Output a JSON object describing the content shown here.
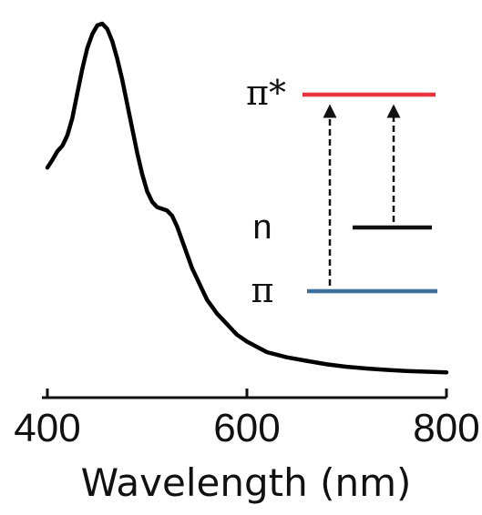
{
  "chart_data": {
    "type": "line",
    "title": "",
    "xlabel": "Wavelength (nm)",
    "ylabel": "",
    "xlim": [
      400,
      800
    ],
    "ylim": [
      0,
      1.0
    ],
    "xticks": [
      400,
      600,
      800
    ],
    "grid": false,
    "series": [
      {
        "color": "#000000",
        "x": [
          400,
          405,
          410,
          415,
          420,
          425,
          430,
          435,
          440,
          445,
          450,
          455,
          460,
          465,
          470,
          475,
          480,
          485,
          490,
          495,
          500,
          505,
          510,
          515,
          520,
          525,
          530,
          535,
          540,
          545,
          550,
          555,
          560,
          570,
          580,
          590,
          600,
          610,
          620,
          640,
          660,
          680,
          700,
          720,
          740,
          760,
          780,
          800
        ],
        "y": [
          0.588,
          0.61,
          0.635,
          0.65,
          0.68,
          0.73,
          0.8,
          0.87,
          0.93,
          0.97,
          0.995,
          1.0,
          0.985,
          0.95,
          0.9,
          0.84,
          0.77,
          0.7,
          0.63,
          0.57,
          0.52,
          0.49,
          0.475,
          0.47,
          0.465,
          0.45,
          0.42,
          0.38,
          0.34,
          0.3,
          0.27,
          0.24,
          0.21,
          0.17,
          0.14,
          0.11,
          0.09,
          0.075,
          0.06,
          0.045,
          0.035,
          0.025,
          0.018,
          0.013,
          0.009,
          0.006,
          0.004,
          0.002
        ]
      }
    ]
  },
  "inset": {
    "levels": [
      {
        "label": "π*",
        "color": "#e8343c"
      },
      {
        "label": "n",
        "color": "#111111"
      },
      {
        "label": "π",
        "color": "#3a6f9e"
      }
    ],
    "transitions": [
      {
        "from": "π",
        "to": "π*"
      },
      {
        "from": "n",
        "to": "π*"
      }
    ]
  }
}
